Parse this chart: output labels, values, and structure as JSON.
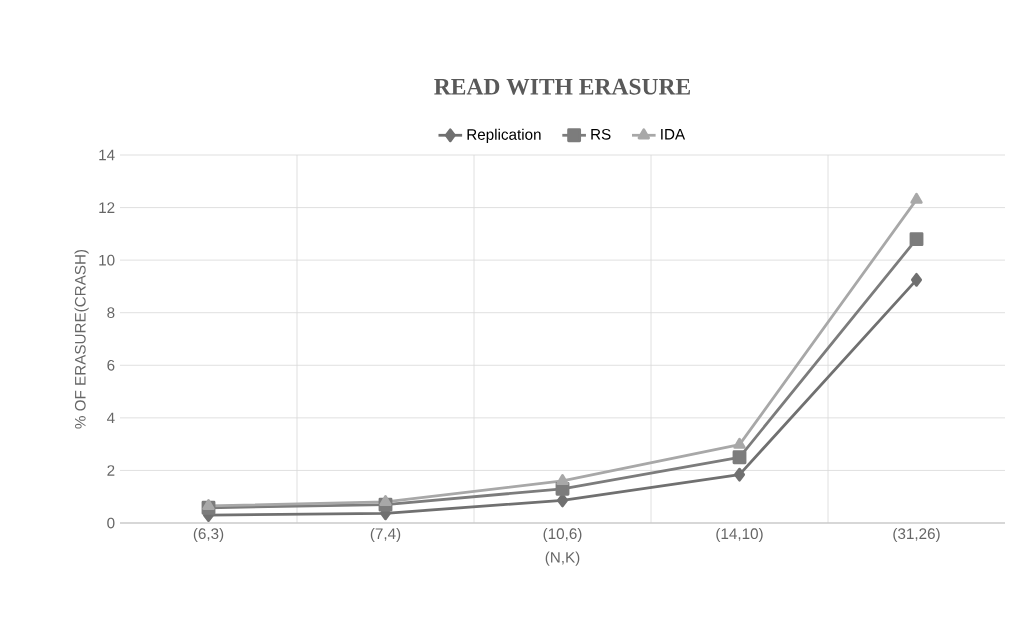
{
  "chart_data": {
    "type": "line",
    "title": "READ WITH ERASURE",
    "xlabel": "(N,K)",
    "ylabel": "% OF ERASURE(CRASH)",
    "categories": [
      "(6,3)",
      "(7,4)",
      "(10,6)",
      "(14,10)",
      "(31,26)"
    ],
    "series": [
      {
        "name": "Replication",
        "color": "#707070",
        "marker": "diamond",
        "values": [
          0.3,
          0.37,
          0.86,
          1.84,
          9.25
        ]
      },
      {
        "name": "RS",
        "color": "#7c7c7c",
        "marker": "square",
        "values": [
          0.58,
          0.7,
          1.3,
          2.5,
          10.8
        ]
      },
      {
        "name": "IDA",
        "color": "#a8a8a8",
        "marker": "triangle",
        "values": [
          0.65,
          0.8,
          1.6,
          2.98,
          12.3
        ]
      }
    ],
    "ylim": [
      0,
      14
    ],
    "yticks": [
      0,
      2,
      4,
      6,
      8,
      10,
      12,
      14
    ],
    "grid": true,
    "legend": "top"
  }
}
